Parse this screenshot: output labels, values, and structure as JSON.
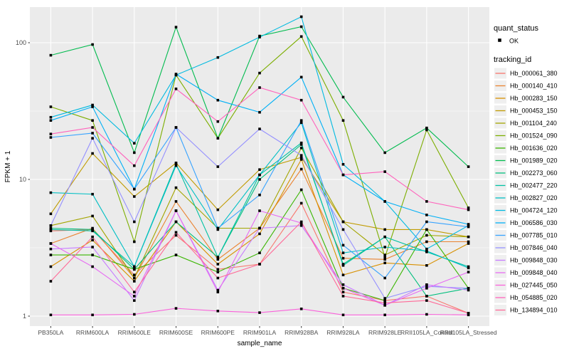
{
  "style": {
    "background": "#FFFFFF",
    "panel_bg": "#EBEBEB",
    "grid_color": "#FFFFFF",
    "tick_text_color": "#4D4D4D",
    "axis_title_color": "#000000",
    "point_color": "#000000",
    "legend_key_bg": "#EFEFEF"
  },
  "legend": {
    "quant_status_title": "quant_status",
    "quant_status_items": [
      {
        "label": "OK",
        "symbol": "black-point"
      }
    ],
    "tracking_id_title": "tracking_id"
  },
  "chart_data": {
    "type": "line",
    "title": "",
    "xlabel": "sample_name",
    "ylabel": "FPKM + 1",
    "y_scale": "log10",
    "y_ticks": [
      1,
      10,
      100
    ],
    "y_minor_ticks": [
      3.162,
      31.623
    ],
    "ylim": [
      0.85,
      182
    ],
    "grid": "major-and-minor-horizontal, major-vertical",
    "legend_position": "right",
    "categories": [
      "PB350LA",
      "RRIM600LA",
      "RRIM600LE",
      "RRIM600SE",
      "RRIM600PE",
      "RRIM901LA",
      "RRIM928BA",
      "RRIM928LA",
      "RRIM928LE",
      "RRII105LA_Control",
      "RRII105LA_Stressed"
    ],
    "point_marker": "black-square",
    "series": [
      {
        "name": "Hb_000061_380",
        "color": "#F8766D",
        "values": [
          4.2,
          4.3,
          2.0,
          3.9,
          2.2,
          2.4,
          6.7,
          1.5,
          1.3,
          1.4,
          1.05
        ]
      },
      {
        "name": "Hb_000140_410",
        "color": "#EA8331",
        "values": [
          3.4,
          4.4,
          1.9,
          6.9,
          2.6,
          4.4,
          11.9,
          2.65,
          2.6,
          3.5,
          3.5
        ]
      },
      {
        "name": "Hb_000283_150",
        "color": "#D89000",
        "values": [
          2.3,
          3.6,
          1.8,
          4.9,
          2.4,
          4.0,
          14.0,
          2.0,
          2.45,
          2.35,
          3.4
        ]
      },
      {
        "name": "Hb_000453_150",
        "color": "#C09B00",
        "values": [
          5.6,
          15.5,
          7.5,
          13.2,
          6.0,
          11.8,
          14.5,
          4.9,
          4.3,
          4.3,
          3.8
        ]
      },
      {
        "name": "Hb_001104_240",
        "color": "#A3A500",
        "values": [
          4.6,
          5.4,
          1.9,
          8.7,
          4.4,
          4.4,
          17.0,
          4.9,
          2.8,
          3.9,
          3.8
        ]
      },
      {
        "name": "Hb_001524_090",
        "color": "#7CAE00",
        "values": [
          34,
          27,
          3.5,
          58,
          20,
          60,
          111,
          27,
          2.7,
          23,
          6.2
        ]
      },
      {
        "name": "Hb_001636_020",
        "color": "#39B600",
        "values": [
          2.8,
          2.8,
          2.2,
          2.8,
          2.1,
          2.9,
          8.4,
          1.6,
          1.3,
          4.3,
          1.6
        ]
      },
      {
        "name": "Hb_001989_020",
        "color": "#00BB4E",
        "values": [
          81,
          97,
          15.7,
          130,
          20,
          112,
          131,
          40,
          15.7,
          23.8,
          12.4
        ]
      },
      {
        "name": "Hb_002273_060",
        "color": "#00BF7D",
        "values": [
          4.4,
          4.3,
          2.2,
          4.9,
          2.7,
          10.0,
          18.0,
          2.4,
          3.8,
          1.4,
          1.6
        ]
      },
      {
        "name": "Hb_002477_220",
        "color": "#00C1A3",
        "values": [
          4.3,
          4.2,
          2.3,
          13.0,
          2.7,
          10.8,
          18.5,
          2.35,
          3.8,
          2.95,
          2.3
        ]
      },
      {
        "name": "Hb_002827_020",
        "color": "#00BFC4",
        "values": [
          8.0,
          7.8,
          2.3,
          12.6,
          4.3,
          10.8,
          26,
          2.9,
          3.2,
          3.0,
          2.25
        ]
      },
      {
        "name": "Hb_004724_120",
        "color": "#00BAE0",
        "values": [
          28.5,
          35,
          18.4,
          58,
          78,
          110,
          155,
          12.9,
          6.9,
          3.1,
          4.6
        ]
      },
      {
        "name": "Hb_006586_030",
        "color": "#00B0F6",
        "values": [
          27,
          34,
          8.5,
          59,
          38,
          31,
          56,
          10.8,
          6.9,
          5.5,
          4.7
        ]
      },
      {
        "name": "Hb_007785_010",
        "color": "#35A2FF",
        "values": [
          20.3,
          21.8,
          8.5,
          24,
          4.4,
          7.7,
          27,
          3.3,
          1.9,
          4.9,
          4.5
        ]
      },
      {
        "name": "Hb_007846_040",
        "color": "#9590FF",
        "values": [
          4.6,
          20,
          4.9,
          24,
          12.4,
          23.4,
          15,
          4.3,
          1.35,
          1.65,
          1.6
        ]
      },
      {
        "name": "Hb_009848_030",
        "color": "#C77CFF",
        "values": [
          3.1,
          3.2,
          1.3,
          5.9,
          1.55,
          4.4,
          4.6,
          1.7,
          1.2,
          1.7,
          1.55
        ]
      },
      {
        "name": "Hb_009848_040",
        "color": "#E76BF3",
        "values": [
          3.4,
          2.3,
          1.4,
          5.9,
          1.5,
          5.9,
          4.8,
          1.6,
          1.2,
          1.6,
          2.1
        ]
      },
      {
        "name": "Hb_027445_050",
        "color": "#FA62DB",
        "values": [
          1.02,
          1.02,
          1.03,
          1.14,
          1.09,
          1.06,
          1.13,
          1.02,
          1.02,
          1.03,
          1.02
        ]
      },
      {
        "name": "Hb_054885_020",
        "color": "#FF62BC",
        "values": [
          21.5,
          24,
          12.6,
          46,
          26.5,
          47,
          38,
          10.8,
          11.4,
          6.9,
          6.0
        ]
      },
      {
        "name": "Hb_134894_010",
        "color": "#FF6A98",
        "values": [
          1.8,
          3.8,
          1.5,
          4.1,
          1.9,
          2.4,
          4.9,
          1.4,
          1.25,
          1.3,
          1.05
        ]
      }
    ]
  }
}
